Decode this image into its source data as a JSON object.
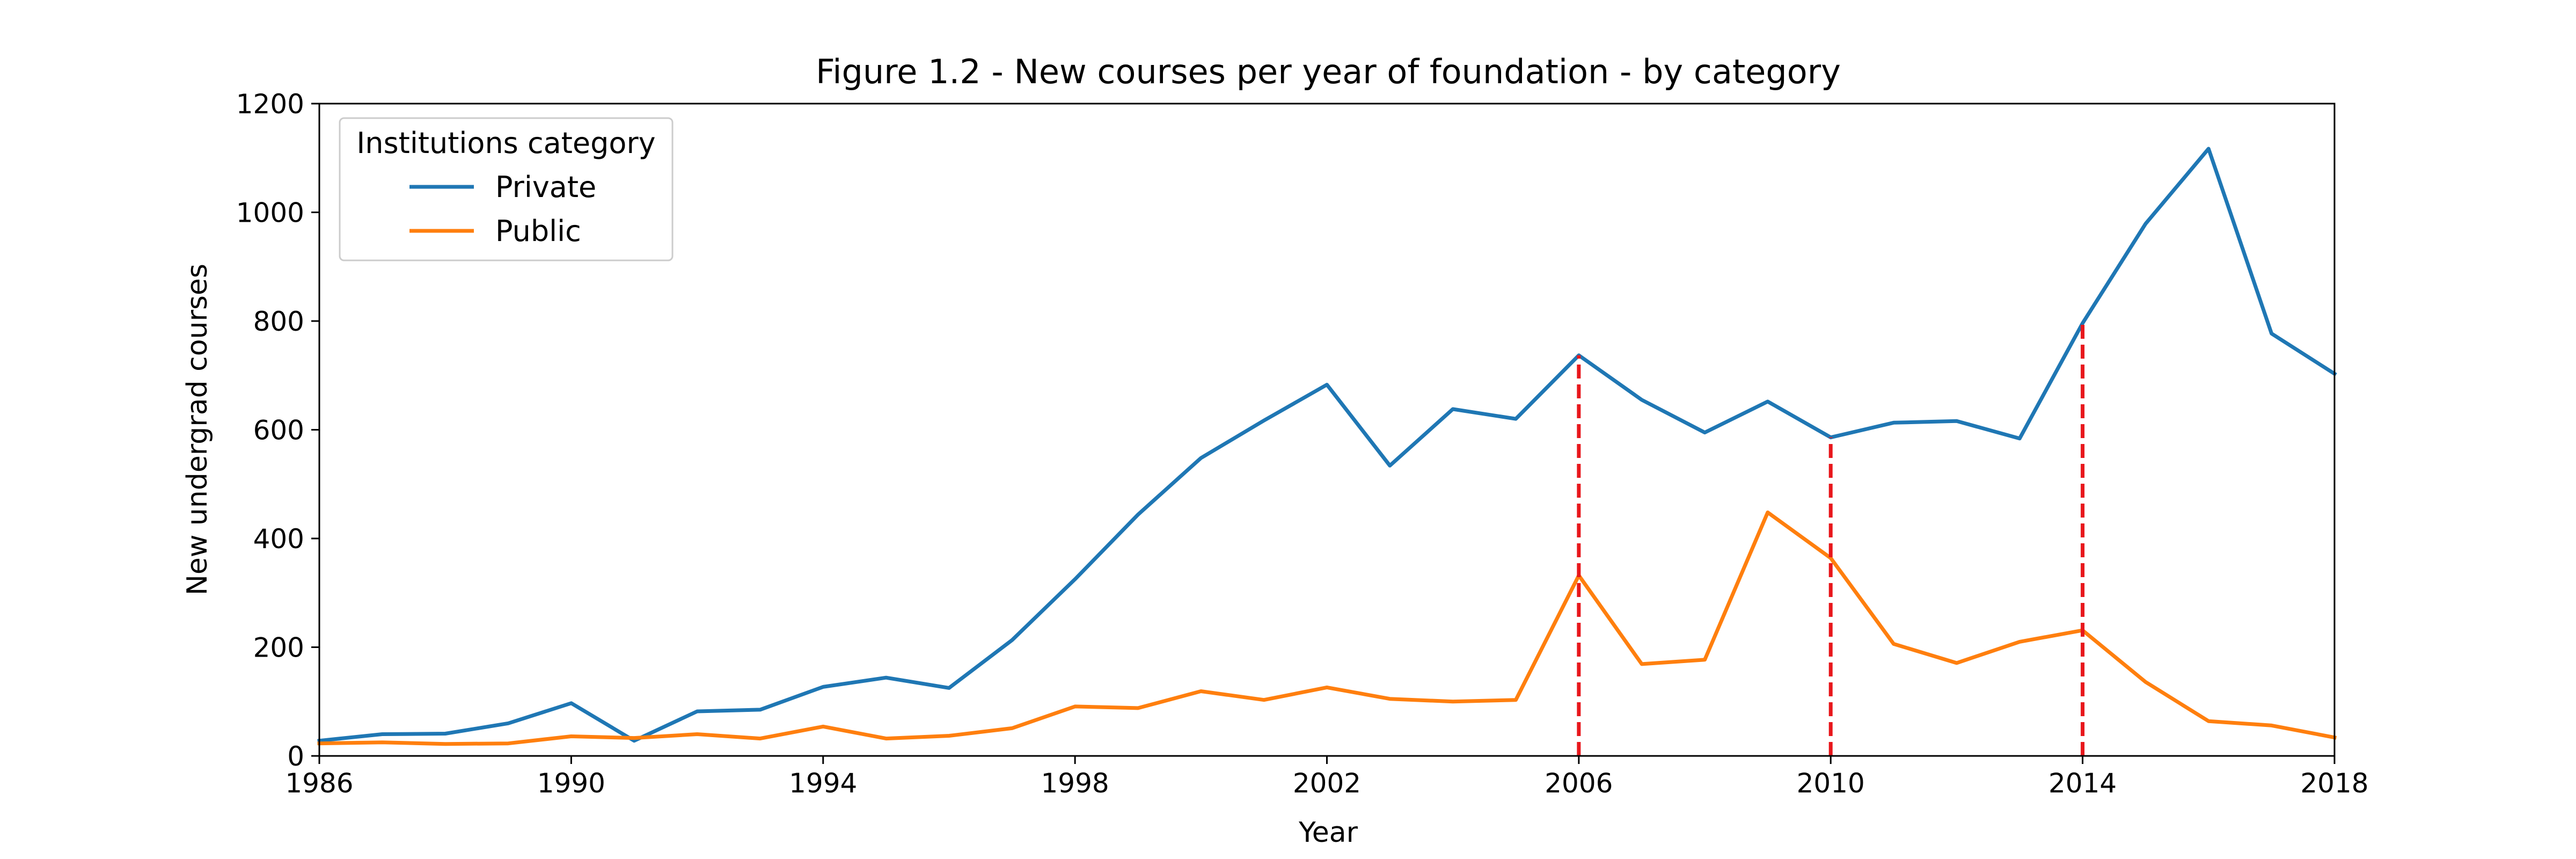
{
  "chart_data": {
    "type": "line",
    "title": "Figure 1.2 - New courses per year of foundation - by category",
    "xlabel": "Year",
    "ylabel": "New undergrad courses",
    "xlim": [
      1986,
      2018
    ],
    "ylim": [
      0,
      1200
    ],
    "xticks": [
      1986,
      1990,
      1994,
      1998,
      2002,
      2006,
      2010,
      2014,
      2018
    ],
    "yticks": [
      0,
      200,
      400,
      600,
      800,
      1000,
      1200
    ],
    "grid": false,
    "legend": {
      "title": "Institutions category",
      "placement": "top-left"
    },
    "x": [
      1986,
      1987,
      1988,
      1989,
      1990,
      1991,
      1992,
      1993,
      1994,
      1995,
      1996,
      1997,
      1998,
      1999,
      2000,
      2001,
      2002,
      2003,
      2004,
      2005,
      2006,
      2007,
      2008,
      2009,
      2010,
      2011,
      2012,
      2013,
      2014,
      2015,
      2016,
      2017,
      2018
    ],
    "series": [
      {
        "name": "Private",
        "color": "#1f77b4",
        "values": [
          28,
          40,
          41,
          60,
          97,
          28,
          82,
          85,
          127,
          144,
          125,
          213,
          325,
          444,
          548,
          617,
          683,
          534,
          638,
          620,
          737,
          655,
          595,
          652,
          586,
          613,
          616,
          584,
          796,
          979,
          1117,
          777,
          703
        ]
      },
      {
        "name": "Public",
        "color": "#ff7f0e",
        "values": [
          23,
          25,
          22,
          23,
          36,
          33,
          40,
          32,
          54,
          32,
          37,
          51,
          91,
          88,
          119,
          103,
          126,
          105,
          100,
          103,
          332,
          169,
          177,
          448,
          364,
          206,
          171,
          210,
          231,
          136,
          64,
          56,
          34
        ]
      }
    ],
    "vlines": {
      "color": "#e8171c",
      "style": "dashed",
      "x": [
        2006,
        2010,
        2014
      ],
      "y_top": [
        737,
        586,
        796
      ]
    }
  }
}
